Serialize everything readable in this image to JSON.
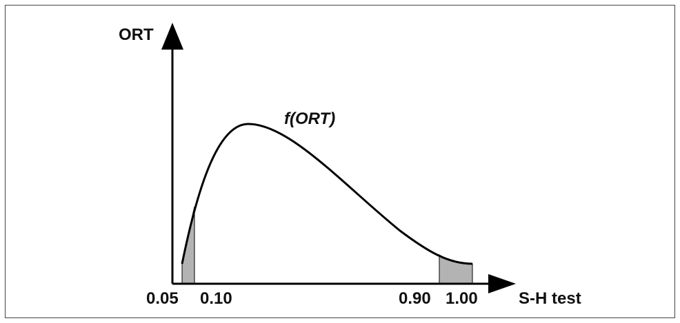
{
  "diagram": {
    "y_axis_label": "ORT",
    "x_axis_label": "S-H test",
    "curve_label": "f(ORT)",
    "tick_labels": [
      "0.05",
      "0.10",
      "0.90",
      "1.00"
    ],
    "colors": {
      "curve": "#000000",
      "shaded_region": "#b3b3b3",
      "frame": "#444444",
      "text": "#111111"
    },
    "shaded_intervals": [
      {
        "from": "0.05",
        "to": "0.10"
      },
      {
        "from": "0.90",
        "to": "1.00"
      }
    ]
  }
}
